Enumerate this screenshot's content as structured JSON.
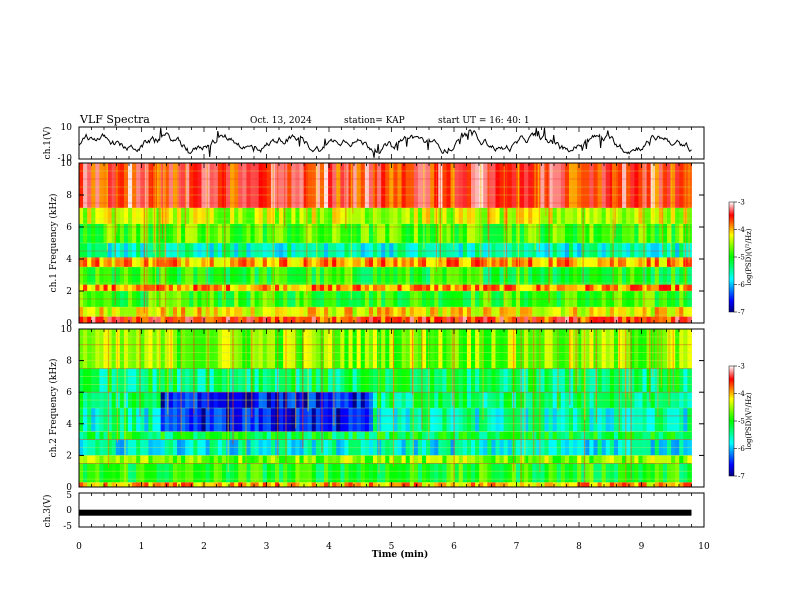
{
  "header": {
    "title": "VLF Spectra",
    "date": "Oct. 13, 2024",
    "station": "station= KAP",
    "start": "start  UT  =   16: 40: 1"
  },
  "chart_data": [
    {
      "type": "line",
      "panel": "ch1-waveform",
      "ylabel": "ch.1(V)",
      "ylim": [
        -10,
        10
      ],
      "yticks": [
        "10",
        "-10"
      ],
      "xlim": [
        0,
        10
      ],
      "color": "#000000",
      "data_end_min": 9.8
    },
    {
      "type": "heatmap",
      "panel": "ch1-spectrogram",
      "ylabel": "ch.1 Frequency (kHz)",
      "ylim": [
        0,
        10
      ],
      "yticks": [
        "0",
        "2",
        "4",
        "6",
        "8",
        "10"
      ],
      "xlim": [
        0,
        10
      ],
      "colorbar": {
        "label": "log(PSD)(V²/Hz)",
        "range": [
          -7,
          -3
        ],
        "ticks": [
          "-3",
          "-4",
          "-5",
          "-6",
          "-7"
        ]
      },
      "bands": [
        {
          "range": [
            0,
            0.4
          ],
          "level": -3.6
        },
        {
          "range": [
            0.4,
            1.0
          ],
          "level": -4.2
        },
        {
          "range": [
            1.0,
            2.0
          ],
          "level": -4.9
        },
        {
          "range": [
            2.0,
            2.4
          ],
          "level": -3.9
        },
        {
          "range": [
            2.4,
            3.5
          ],
          "level": -5.0
        },
        {
          "range": [
            3.5,
            4.1
          ],
          "level": -3.9
        },
        {
          "range": [
            4.1,
            5.0
          ],
          "level": -5.6
        },
        {
          "range": [
            5.0,
            6.2
          ],
          "level": -4.8
        },
        {
          "range": [
            6.2,
            7.2
          ],
          "level": -4.4
        },
        {
          "range": [
            7.2,
            10.0
          ],
          "level": -3.5
        }
      ]
    },
    {
      "type": "heatmap",
      "panel": "ch2-spectrogram",
      "ylabel": "ch.2 Frequency (kHz)",
      "ylim": [
        0,
        10
      ],
      "yticks": [
        "0",
        "2",
        "4",
        "6",
        "8",
        "10"
      ],
      "xlim": [
        0,
        10
      ],
      "colorbar": {
        "label": "log(PSD)(V²/Hz)",
        "range": [
          -7,
          -3
        ],
        "ticks": [
          "-3",
          "-4",
          "-5",
          "-6",
          "-7"
        ]
      },
      "bands": [
        {
          "range": [
            0,
            0.3
          ],
          "level": -4.0
        },
        {
          "range": [
            0.3,
            1.5
          ],
          "level": -5.0
        },
        {
          "range": [
            1.5,
            2.0
          ],
          "level": -4.6
        },
        {
          "range": [
            2.0,
            3.0
          ],
          "level": -5.7
        },
        {
          "range": [
            3.0,
            3.5
          ],
          "level": -5.2
        },
        {
          "range": [
            3.5,
            5.0
          ],
          "level": -5.6
        },
        {
          "range": [
            5.0,
            6.0
          ],
          "level": -5.4
        },
        {
          "range": [
            6.0,
            7.5
          ],
          "level": -5.3
        },
        {
          "range": [
            7.5,
            10.0
          ],
          "level": -4.6
        }
      ],
      "quiet_region": {
        "time": [
          1.3,
          4.7
        ],
        "freq": [
          3.5,
          6.0
        ],
        "level": -6.6
      }
    },
    {
      "type": "line",
      "panel": "ch3-waveform",
      "ylabel": "ch.3(V)",
      "ylim": [
        -5,
        5
      ],
      "yticks": [
        "5",
        "0",
        "-5"
      ],
      "xlim": [
        0,
        10
      ],
      "value": -0.8,
      "color": "#000000"
    }
  ],
  "x_axis": {
    "label": "Time  (min)",
    "ticks": [
      "0",
      "1",
      "2",
      "3",
      "4",
      "5",
      "6",
      "7",
      "8",
      "9",
      "10"
    ]
  },
  "colors": {
    "axes": "#000000",
    "gridline": "#c8e650",
    "bandline": "#e33030"
  }
}
